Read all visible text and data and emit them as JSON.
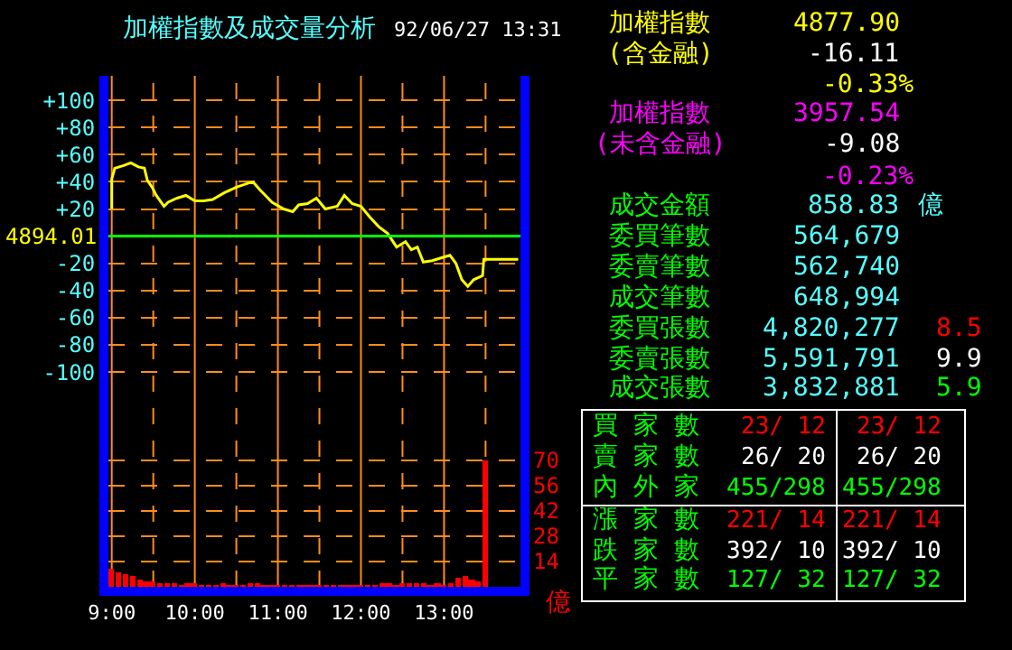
{
  "chart_data": [
    {
      "type": "line",
      "title": "加權指數及成交量分析",
      "subtitle": "92/06/27 13:31",
      "y2label": "億",
      "xlim": [
        8.96,
        13.92
      ],
      "xticks": [
        {
          "value": 9,
          "label": "9:00"
        },
        {
          "value": 9.5,
          "label": null
        },
        {
          "value": 10,
          "label": "10:00"
        },
        {
          "value": 10.5,
          "label": null
        },
        {
          "value": 11,
          "label": "11:00"
        },
        {
          "value": 11.5,
          "label": null
        },
        {
          "value": 12,
          "label": "12:00"
        },
        {
          "value": 12.5,
          "label": null
        },
        {
          "value": 13,
          "label": "13:00"
        },
        {
          "value": 13.5,
          "label": null
        }
      ],
      "ylim": [
        -258,
        118
      ],
      "yticks": [
        {
          "value": 100,
          "label": "+100"
        },
        {
          "value": 80,
          "label": "+80"
        },
        {
          "value": 60,
          "label": "+60"
        },
        {
          "value": 40,
          "label": "+40"
        },
        {
          "value": 20,
          "label": "+20"
        },
        -20,
        -40,
        -60,
        -80,
        -100
      ],
      "y2lim": [
        0,
        283
      ],
      "y2ticks": [
        14,
        28,
        42,
        56,
        70
      ],
      "grid": true,
      "ref_lines": [
        {
          "axis": "y",
          "value": 0,
          "color": "#00ff00"
        }
      ],
      "annotations": [
        "4894.01"
      ],
      "series": [
        {
          "type": "line",
          "color": "#ffff00",
          "x": [
            9.0,
            9.0,
            9.036,
            9.143,
            9.229,
            9.321,
            9.393,
            9.429,
            9.486,
            9.536,
            9.629,
            9.679,
            9.786,
            9.893,
            10.0,
            10.107,
            10.214,
            10.357,
            10.5,
            10.643,
            10.7,
            10.786,
            10.929,
            11.071,
            11.179,
            11.25,
            11.357,
            11.464,
            11.571,
            11.714,
            11.8,
            11.893,
            12.0,
            12.107,
            12.214,
            12.321,
            12.429,
            12.536,
            12.607,
            12.679,
            12.75,
            12.857,
            12.964,
            13.071,
            13.143,
            13.214,
            13.286,
            13.357,
            13.429,
            13.464,
            13.479,
            13.893
          ],
          "values": [
            20,
            42,
            50,
            52,
            54,
            51,
            50,
            41,
            36,
            30,
            22,
            25,
            28,
            30,
            26,
            26,
            27,
            32,
            36,
            39,
            40,
            34,
            25,
            20,
            18,
            23,
            24,
            28,
            20,
            22,
            30,
            24,
            22,
            14,
            7,
            2,
            -8,
            -4,
            -10,
            -8,
            -19,
            -18,
            -16,
            -14,
            -20,
            -32,
            -37,
            -32,
            -30,
            -29,
            -17,
            -17
          ]
        },
        {
          "type": "bar",
          "axis": "y2",
          "color": "#ff0000",
          "x": [
            9.0,
            9.083,
            9.167,
            9.25,
            9.333,
            9.417,
            9.5,
            9.583,
            9.667,
            9.75,
            9.833,
            9.917,
            10.0,
            10.083,
            10.167,
            10.25,
            10.333,
            10.417,
            10.5,
            10.583,
            10.667,
            10.75,
            10.833,
            10.917,
            11.0,
            11.083,
            11.167,
            11.25,
            11.333,
            11.417,
            11.5,
            11.583,
            11.667,
            11.75,
            11.833,
            11.917,
            12.0,
            12.083,
            12.167,
            12.25,
            12.333,
            12.417,
            12.5,
            12.583,
            12.667,
            12.75,
            12.833,
            12.917,
            13.0,
            13.083,
            13.167,
            13.25,
            13.333,
            13.417,
            13.5
          ],
          "values": [
            10,
            8,
            7,
            6,
            4,
            3,
            3,
            2,
            2,
            2,
            1,
            2,
            2,
            1,
            1,
            1,
            2,
            1,
            1,
            1,
            2,
            2,
            1,
            1,
            1,
            1,
            1,
            1,
            1,
            1,
            1,
            1,
            1,
            1,
            1,
            1,
            1,
            1,
            1,
            2,
            2,
            1,
            2,
            2,
            2,
            2,
            1,
            2,
            1,
            2,
            5,
            6,
            4,
            3,
            70
          ]
        }
      ]
    },
    {
      "type": "other",
      "annotations": [
        "加權指數",
        "4877.90",
        "(含金融)",
        "-16.11",
        "-0.33%",
        "加權指數",
        "3957.54",
        "(未含金融)",
        "-9.08",
        "-0.23%",
        "成交金額",
        "858.83",
        "億",
        "委買筆數",
        "564,679",
        "委賣筆數",
        "562,740",
        "成交筆數",
        "648,994",
        "委買張數",
        "4,820,277",
        "8.5",
        "委賣張數",
        "5,591,791",
        "9.9",
        "成交張數",
        "3,832,881",
        "5.9",
        "買 家 數",
        "23/ 12",
        "23/ 12",
        "賣 家 數",
        "26/ 20",
        "26/ 20",
        "內 外 家",
        "455/298",
        "455/298",
        "漲 家 數",
        "221/ 14",
        "221/ 14",
        "跌 家 數",
        "392/ 10",
        "392/ 10",
        "平 家 數",
        "127/ 32",
        "127/ 32"
      ],
      "colors": [
        "#ffff00",
        "#ffff00",
        "#ffff00",
        "#ffffff",
        "#ffff00",
        "#ff00ff",
        "#ff00ff",
        "#ff00ff",
        "#ffffff",
        "#ff00ff",
        "#00ff00",
        "#55ffff",
        "#55ffff",
        "#00ff00",
        "#55ffff",
        "#00ff00",
        "#55ffff",
        "#00ff00",
        "#55ffff",
        "#00ff00",
        "#55ffff",
        "#ff0000",
        "#00ff00",
        "#55ffff",
        "#ffffff",
        "#00ff00",
        "#55ffff",
        "#00ff00",
        "#00ff00",
        "#ff0000",
        "#ff0000",
        "#00ff00",
        "#ffffff",
        "#ffffff",
        "#00ff00",
        "#00ff00",
        "#00ff00",
        "#00ff00",
        "#ff0000",
        "#ff0000",
        "#00ff00",
        "#ffffff",
        "#ffffff",
        "#00ff00",
        "#00ff00",
        "#00ff00"
      ]
    }
  ]
}
